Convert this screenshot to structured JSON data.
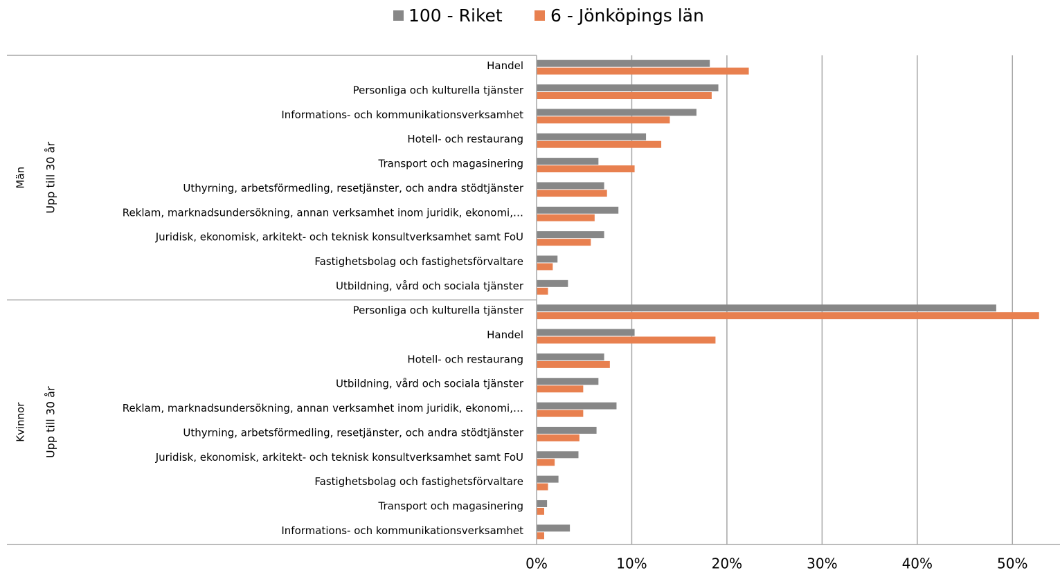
{
  "chart_data": {
    "type": "bar",
    "orientation": "horizontal",
    "groups": [
      {
        "label": "Män",
        "sublabel": "Upp till 30 år",
        "categories": [
          "Handel",
          "Personliga och kulturella tjänster",
          "Informations- och kommunikationsverksamhet",
          "Hotell- och restaurang",
          "Transport och magasinering",
          "Uthyrning, arbetsförmedling, resetjänster, och andra stödtjänster",
          "Reklam, marknadsundersökning, annan verksamhet inom juridik, ekonomi,…",
          "Juridisk, ekonomisk, arkitekt- och teknisk konsultverksamhet samt FoU",
          "Fastighetsbolag och fastighetsförvaltare",
          "Utbildning, vård och sociala tjänster"
        ]
      },
      {
        "label": "Kvinnor",
        "sublabel": "Upp till 30 år",
        "categories": [
          "Personliga och kulturella tjänster",
          "Handel",
          "Hotell- och restaurang",
          "Utbildning, vård och sociala tjänster",
          "Reklam, marknadsundersökning, annan verksamhet inom juridik, ekonomi,…",
          "Uthyrning, arbetsförmedling, resetjänster, och andra stödtjänster",
          "Juridisk, ekonomisk, arkitekt- och teknisk konsultverksamhet samt FoU",
          "Fastighetsbolag och fastighetsförvaltare",
          "Transport och magasinering",
          "Informations- och kommunikationsverksamhet"
        ]
      }
    ],
    "series": [
      {
        "name": "100 - Riket",
        "color": "#878787",
        "values": [
          18.2,
          19.1,
          16.8,
          11.5,
          6.5,
          7.1,
          8.6,
          7.1,
          2.2,
          3.3,
          48.3,
          10.3,
          7.1,
          6.5,
          8.4,
          6.3,
          4.4,
          2.3,
          1.1,
          3.5
        ]
      },
      {
        "name": "6 - Jönköpings län",
        "color": "#e8804f",
        "values": [
          22.3,
          18.4,
          14.0,
          13.1,
          10.3,
          7.4,
          6.1,
          5.7,
          1.7,
          1.2,
          52.8,
          18.8,
          7.7,
          4.9,
          4.9,
          4.5,
          1.9,
          1.2,
          0.8,
          0.8
        ]
      }
    ],
    "xlim": [
      0,
      55
    ],
    "xticks": [
      {
        "value": 0,
        "label": "0%"
      },
      {
        "value": 10,
        "label": "10%"
      },
      {
        "value": 20,
        "label": "20%"
      },
      {
        "value": 30,
        "label": "30%"
      },
      {
        "value": 40,
        "label": "40%"
      },
      {
        "value": 50,
        "label": "50%"
      }
    ],
    "grid": true,
    "legend": "top"
  }
}
